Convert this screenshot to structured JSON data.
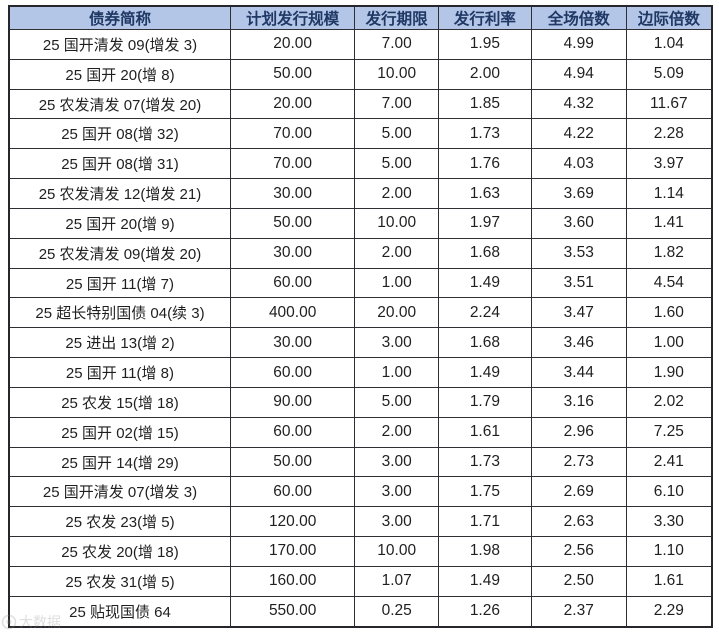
{
  "chart_data": {
    "type": "table",
    "columns": [
      "债券简称",
      "计划发行规模",
      "发行期限",
      "发行利率",
      "全场倍数",
      "边际倍数"
    ],
    "rows": [
      {
        "name": "25 国开清发 09(增发 3)",
        "values": [
          "20.00",
          "7.00",
          "1.95",
          "4.99",
          "1.04"
        ]
      },
      {
        "name": "25 国开 20(增 8)",
        "values": [
          "50.00",
          "10.00",
          "2.00",
          "4.94",
          "5.09"
        ]
      },
      {
        "name": "25 农发清发 07(增发 20)",
        "values": [
          "20.00",
          "7.00",
          "1.85",
          "4.32",
          "11.67"
        ]
      },
      {
        "name": "25 国开 08(增 32)",
        "values": [
          "70.00",
          "5.00",
          "1.73",
          "4.22",
          "2.28"
        ]
      },
      {
        "name": "25 国开 08(增 31)",
        "values": [
          "70.00",
          "5.00",
          "1.76",
          "4.03",
          "3.97"
        ]
      },
      {
        "name": "25 农发清发 12(增发 21)",
        "values": [
          "30.00",
          "2.00",
          "1.63",
          "3.69",
          "1.14"
        ]
      },
      {
        "name": "25 国开 20(增 9)",
        "values": [
          "50.00",
          "10.00",
          "1.97",
          "3.60",
          "1.41"
        ]
      },
      {
        "name": "25 农发清发 09(增发 20)",
        "values": [
          "30.00",
          "2.00",
          "1.68",
          "3.53",
          "1.82"
        ]
      },
      {
        "name": "25 国开 11(增 7)",
        "values": [
          "60.00",
          "1.00",
          "1.49",
          "3.51",
          "4.54"
        ]
      },
      {
        "name": "25 超长特别国债 04(续 3)",
        "values": [
          "400.00",
          "20.00",
          "2.24",
          "3.47",
          "1.60"
        ]
      },
      {
        "name": "25 进出 13(增 2)",
        "values": [
          "30.00",
          "3.00",
          "1.68",
          "3.46",
          "1.00"
        ]
      },
      {
        "name": "25 国开 11(增 8)",
        "values": [
          "60.00",
          "1.00",
          "1.49",
          "3.44",
          "1.90"
        ]
      },
      {
        "name": "25 农发 15(增 18)",
        "values": [
          "90.00",
          "5.00",
          "1.79",
          "3.16",
          "2.02"
        ]
      },
      {
        "name": "25 国开 02(增 15)",
        "values": [
          "60.00",
          "2.00",
          "1.61",
          "2.96",
          "7.25"
        ]
      },
      {
        "name": "25 国开 14(增 29)",
        "values": [
          "50.00",
          "3.00",
          "1.73",
          "2.73",
          "2.41"
        ]
      },
      {
        "name": "25 国开清发 07(增发 3)",
        "values": [
          "60.00",
          "3.00",
          "1.75",
          "2.69",
          "6.10"
        ]
      },
      {
        "name": "25 农发 23(增 5)",
        "values": [
          "120.00",
          "3.00",
          "1.71",
          "2.63",
          "3.30"
        ]
      },
      {
        "name": "25 农发 20(增 18)",
        "values": [
          "170.00",
          "10.00",
          "1.98",
          "2.56",
          "1.10"
        ]
      },
      {
        "name": "25 农发 31(增 5)",
        "values": [
          "160.00",
          "1.07",
          "1.49",
          "2.50",
          "1.61"
        ]
      },
      {
        "name": "25 贴现国债 64",
        "values": [
          "550.00",
          "0.25",
          "1.26",
          "2.37",
          "2.29"
        ]
      }
    ]
  },
  "watermark": {
    "text": "大数据"
  },
  "colors": {
    "header_bg": "#b4c6e7",
    "header_text": "#1f3864",
    "border": "#2e2e33",
    "body_text": "#1f1f1f"
  }
}
